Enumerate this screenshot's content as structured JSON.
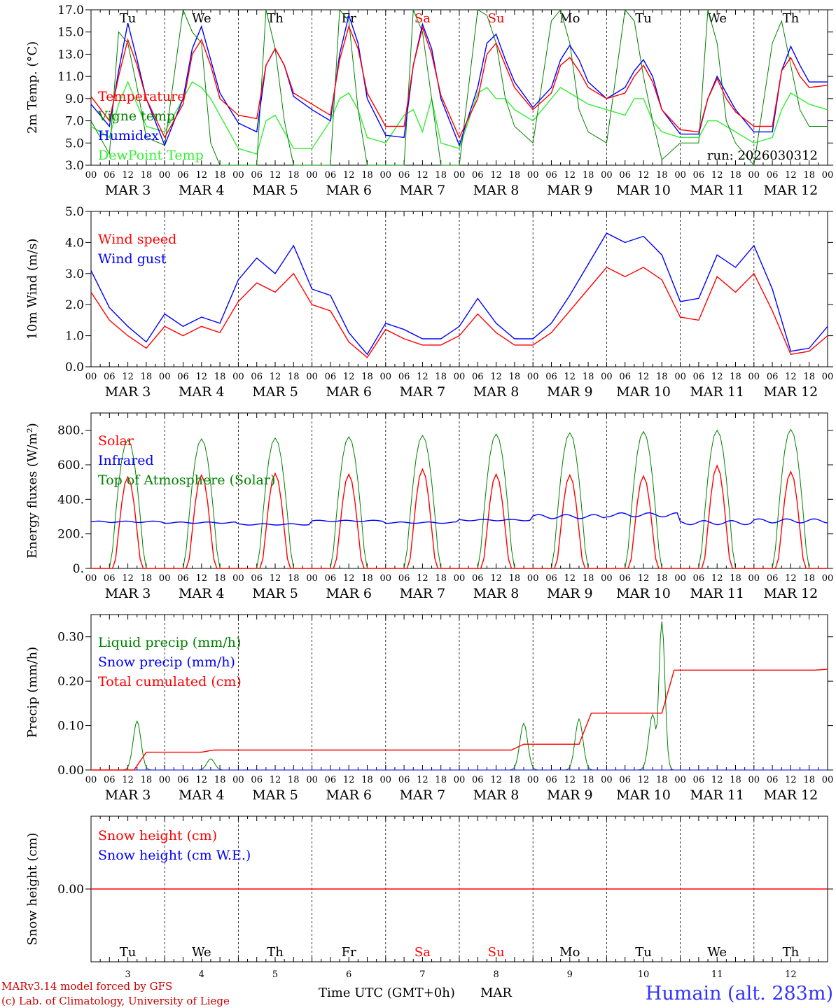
{
  "station": "Humain (alt. 283m)",
  "run_label": "run: 2026030312",
  "credits": [
    "MARv3.14 model forced by GFS",
    "(c) Lab. of Climatology, University of Liege"
  ],
  "x_axis": {
    "title": "Time UTC (GMT+0h)",
    "month": "MAR",
    "hour_ticks": [
      "00",
      "06",
      "12",
      "18"
    ],
    "days": [
      {
        "date": "MAR  3",
        "num": "3",
        "weekday": "Tu",
        "weekend": false
      },
      {
        "date": "MAR  4",
        "num": "4",
        "weekday": "We",
        "weekend": false
      },
      {
        "date": "MAR  5",
        "num": "5",
        "weekday": "Th",
        "weekend": false
      },
      {
        "date": "MAR  6",
        "num": "6",
        "weekday": "Fr",
        "weekend": false
      },
      {
        "date": "MAR  7",
        "num": "7",
        "weekday": "Sa",
        "weekend": true
      },
      {
        "date": "MAR  8",
        "num": "8",
        "weekday": "Su",
        "weekend": true
      },
      {
        "date": "MAR  9",
        "num": "9",
        "weekday": "Mo",
        "weekend": false
      },
      {
        "date": "MAR 10",
        "num": "10",
        "weekday": "Tu",
        "weekend": false
      },
      {
        "date": "MAR 11",
        "num": "11",
        "weekday": "We",
        "weekend": false
      },
      {
        "date": "MAR 12",
        "num": "12",
        "weekday": "Th",
        "weekend": false
      }
    ]
  },
  "colors": {
    "red": "#ff0000",
    "blue": "#0000ff",
    "darkgreen": "#008000",
    "lightgreen": "#33ee33",
    "weekend": "#ff0000",
    "station": "#3333ff"
  },
  "chart_data": [
    {
      "type": "line",
      "ylabel": "2m Temp. (°C)",
      "ylim": [
        3.0,
        17.0
      ],
      "yticks": [
        "3.0",
        "5.0",
        "7.0",
        "9.0",
        "11.0",
        "13.0",
        "15.0",
        "17.0"
      ],
      "x_hours": [
        0,
        6,
        9,
        12,
        15,
        18,
        24,
        30,
        33,
        36,
        39,
        42,
        48,
        54,
        57,
        60,
        63,
        66,
        72,
        78,
        81,
        84,
        87,
        90,
        96,
        102,
        105,
        108,
        111,
        114,
        120,
        126,
        129,
        132,
        135,
        138,
        144,
        150,
        153,
        156,
        159,
        162,
        168,
        174,
        177,
        180,
        183,
        186,
        192,
        198,
        201,
        204,
        207,
        210,
        216,
        222,
        225,
        228,
        231,
        234,
        240
      ],
      "series": [
        {
          "name": "Temperature",
          "color": "red",
          "values": [
            9.2,
            7.0,
            11.0,
            14.3,
            12.0,
            9.0,
            5.5,
            8.5,
            13.0,
            14.3,
            12.0,
            9.0,
            7.5,
            7.2,
            12.0,
            13.5,
            12.0,
            9.5,
            8.5,
            7.5,
            12.5,
            15.5,
            13.5,
            9.5,
            6.5,
            6.5,
            12.0,
            15.4,
            13.0,
            9.3,
            5.5,
            9.0,
            13.0,
            14.0,
            12.0,
            10.0,
            8.0,
            9.5,
            12.0,
            12.7,
            11.5,
            10.0,
            9.0,
            9.5,
            11.0,
            12.0,
            10.5,
            8.0,
            6.2,
            6.0,
            9.0,
            10.8,
            9.0,
            7.8,
            6.5,
            6.5,
            11.5,
            12.7,
            11.0,
            10.0,
            10.2
          ]
        },
        {
          "name": "Vigne temp",
          "color": "darkgreen",
          "values": [
            7.0,
            4.0,
            15.0,
            14.0,
            10.0,
            5.5,
            4.8,
            17.0,
            15.0,
            14.0,
            5.0,
            3.0,
            3.0,
            3.0,
            17.0,
            13.5,
            7.0,
            3.0,
            3.0,
            3.0,
            17.0,
            16.0,
            8.0,
            3.0,
            3.0,
            3.0,
            17.0,
            15.0,
            9.0,
            3.0,
            3.0,
            17.0,
            16.5,
            14.0,
            9.0,
            6.5,
            5.0,
            16.0,
            17.0,
            14.0,
            8.0,
            6.0,
            5.0,
            17.0,
            16.0,
            11.0,
            7.0,
            3.5,
            5.0,
            5.0,
            17.0,
            14.0,
            7.0,
            5.0,
            3.0,
            14.0,
            16.0,
            12.0,
            8.0,
            6.5,
            6.5
          ]
        },
        {
          "name": "Humidex",
          "color": "blue",
          "values": [
            8.5,
            6.5,
            11.5,
            15.8,
            12.5,
            9.0,
            4.8,
            9.0,
            13.5,
            15.5,
            12.5,
            9.5,
            6.8,
            6.0,
            12.0,
            13.5,
            12.0,
            9.2,
            8.0,
            7.0,
            13.0,
            16.5,
            14.0,
            9.0,
            5.7,
            5.5,
            12.0,
            15.7,
            13.5,
            9.0,
            4.8,
            10.0,
            14.0,
            14.8,
            12.5,
            10.5,
            8.2,
            10.0,
            12.5,
            13.8,
            12.5,
            10.5,
            9.0,
            10.0,
            11.5,
            12.5,
            11.0,
            8.0,
            5.8,
            5.8,
            9.0,
            11.0,
            9.5,
            8.0,
            6.0,
            6.0,
            11.5,
            13.7,
            12.0,
            10.5,
            10.5
          ]
        },
        {
          "name": "DewPoint Temp",
          "color": "lightgreen",
          "values": [
            6.5,
            5.5,
            8.5,
            10.5,
            8.5,
            6.5,
            6.0,
            9.0,
            10.5,
            10.0,
            9.0,
            7.5,
            4.5,
            4.0,
            7.0,
            7.5,
            6.0,
            4.5,
            4.5,
            7.0,
            9.0,
            9.5,
            8.0,
            5.5,
            5.0,
            7.5,
            8.0,
            6.0,
            9.0,
            5.0,
            4.5,
            9.5,
            10.0,
            9.0,
            9.0,
            8.0,
            7.0,
            9.0,
            10.0,
            9.5,
            9.0,
            8.5,
            8.0,
            7.5,
            9.0,
            9.0,
            7.0,
            6.0,
            5.5,
            5.5,
            7.0,
            7.0,
            6.5,
            6.0,
            5.0,
            5.5,
            8.0,
            9.5,
            9.0,
            8.5,
            8.0
          ]
        }
      ]
    },
    {
      "type": "line",
      "ylabel": "10m Wind (m/s)",
      "ylim": [
        0.0,
        5.0
      ],
      "yticks": [
        "0.0",
        "1.0",
        "2.0",
        "3.0",
        "4.0",
        "5.0"
      ],
      "x_hours": [
        0,
        6,
        12,
        18,
        24,
        30,
        36,
        42,
        48,
        54,
        60,
        66,
        72,
        78,
        84,
        90,
        96,
        102,
        108,
        114,
        120,
        126,
        132,
        138,
        144,
        150,
        156,
        162,
        168,
        174,
        180,
        186,
        192,
        198,
        204,
        210,
        216,
        222,
        228,
        234,
        240
      ],
      "series": [
        {
          "name": "Wind speed",
          "color": "red",
          "values": [
            2.4,
            1.5,
            1.0,
            0.6,
            1.3,
            1.0,
            1.3,
            1.1,
            2.1,
            2.7,
            2.4,
            3.0,
            2.0,
            1.8,
            0.8,
            0.3,
            1.2,
            0.9,
            0.7,
            0.7,
            1.0,
            1.7,
            1.1,
            0.7,
            0.7,
            1.1,
            1.8,
            2.5,
            3.2,
            2.9,
            3.2,
            2.8,
            1.6,
            1.5,
            2.9,
            2.4,
            3.0,
            1.8,
            0.4,
            0.5,
            1.0
          ]
        },
        {
          "name": "Wind gust",
          "color": "blue",
          "values": [
            3.1,
            1.9,
            1.3,
            0.8,
            1.7,
            1.3,
            1.6,
            1.4,
            2.8,
            3.5,
            3.0,
            3.9,
            2.5,
            2.3,
            1.1,
            0.4,
            1.4,
            1.2,
            0.9,
            0.9,
            1.3,
            2.2,
            1.4,
            0.9,
            0.9,
            1.4,
            2.3,
            3.3,
            4.3,
            4.0,
            4.2,
            3.6,
            2.1,
            2.2,
            3.6,
            3.2,
            3.9,
            2.5,
            0.5,
            0.6,
            1.3
          ]
        }
      ]
    },
    {
      "type": "line",
      "ylabel": "Energy fluxes (W/m²)",
      "ylim": [
        0,
        900
      ],
      "yticks": [
        "0.",
        "200.",
        "400.",
        "600.",
        "800."
      ],
      "series": [
        {
          "name": "Solar",
          "color": "red",
          "daily_peak_values": [
            530,
            540,
            550,
            545,
            575,
            545,
            540,
            535,
            595,
            560
          ]
        },
        {
          "name": "Infrared",
          "color": "blue",
          "daily_mean_values": [
            270,
            265,
            255,
            275,
            265,
            280,
            300,
            310,
            265,
            275
          ]
        },
        {
          "name": "Top of Atmosphere (Solar)",
          "color": "darkgreen",
          "daily_peak_values": [
            745,
            750,
            755,
            762,
            770,
            778,
            785,
            792,
            800,
            805
          ]
        }
      ]
    },
    {
      "type": "line",
      "ylabel": "Precip (mm/h)",
      "ylim": [
        0.0,
        0.35
      ],
      "yticks": [
        "0.00",
        "0.10",
        "0.20",
        "0.30"
      ],
      "series": [
        {
          "name": "Liquid precip (mm/h)",
          "color": "darkgreen",
          "peaks": [
            {
              "hour": 15,
              "value": 0.11
            },
            {
              "hour": 39,
              "value": 0.025
            },
            {
              "hour": 141,
              "value": 0.105
            },
            {
              "hour": 159,
              "value": 0.115
            },
            {
              "hour": 183,
              "value": 0.125
            },
            {
              "hour": 186,
              "value": 0.335
            }
          ]
        },
        {
          "name": "Snow precip (mm/h)",
          "color": "blue",
          "values": [
            0.0
          ]
        },
        {
          "name": "Total cumulated (cm)",
          "color": "red",
          "steps": [
            {
              "hour": 0,
              "value": 0.0
            },
            {
              "hour": 18,
              "value": 0.04
            },
            {
              "hour": 40,
              "value": 0.045
            },
            {
              "hour": 141,
              "value": 0.058
            },
            {
              "hour": 163,
              "value": 0.128
            },
            {
              "hour": 190,
              "value": 0.225
            },
            {
              "hour": 240,
              "value": 0.227
            }
          ]
        }
      ]
    },
    {
      "type": "line",
      "ylabel": "Snow height (cm)",
      "yticks": [
        "0.00"
      ],
      "series": [
        {
          "name": "Snow height (cm)",
          "color": "red",
          "values": [
            0.0
          ]
        },
        {
          "name": "Snow height (cm W.E.)",
          "color": "blue",
          "values": [
            0.0
          ]
        }
      ]
    }
  ]
}
